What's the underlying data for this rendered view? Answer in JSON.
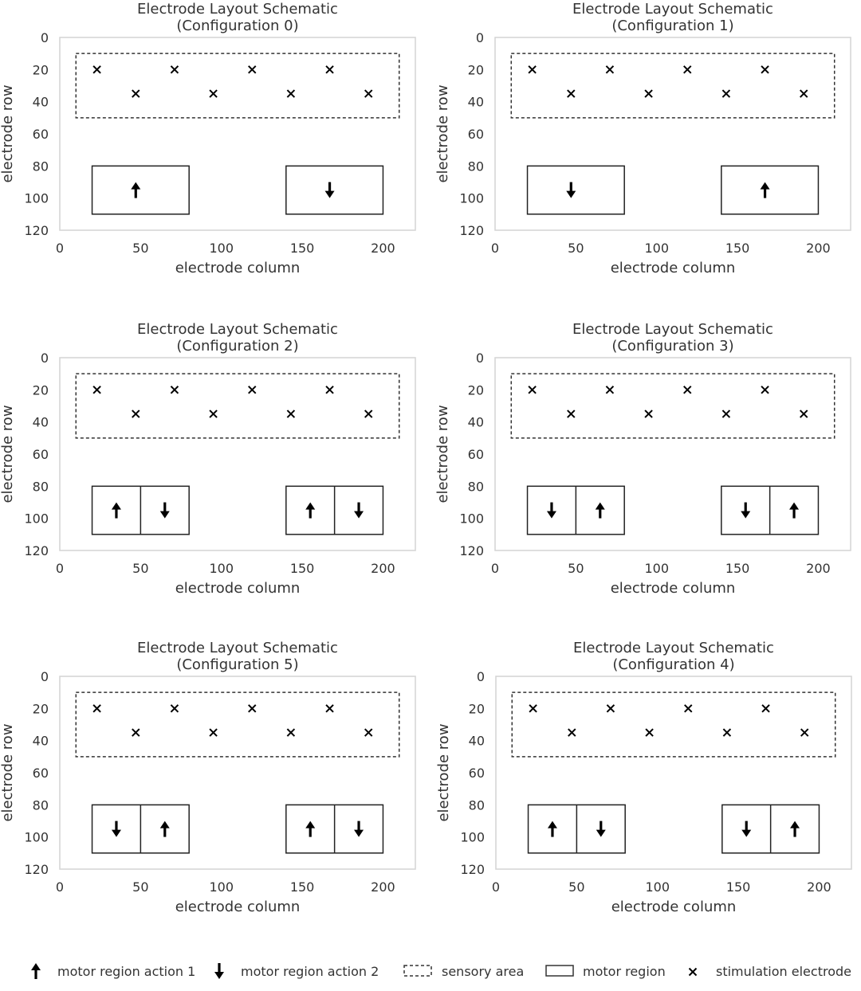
{
  "legend": {
    "action1_label": "motor region action 1",
    "action2_label": "motor region action 2",
    "sensory_label": "sensory area",
    "motor_label": "motor region",
    "electrode_label": "stimulation electrode"
  },
  "colors": {
    "frame": "#d4d4d4",
    "ink": "#000000",
    "text": "#333333"
  },
  "panels": [
    {
      "title1": "Electrode Layout Schematic",
      "title2": "(Configuration 0)",
      "xlabel": "electrode column",
      "ylabel": "electrode row",
      "x_ticks": [
        "0",
        "50",
        "100",
        "150",
        "200"
      ],
      "y_ticks": [
        "0",
        "20",
        "40",
        "60",
        "80",
        "100",
        "120"
      ],
      "xlim": [
        0,
        220
      ],
      "ylim": [
        0,
        120
      ],
      "sensory_area": {
        "x": [
          10,
          210
        ],
        "y": [
          10,
          50
        ]
      },
      "electrodes": [
        [
          23,
          20
        ],
        [
          71,
          20
        ],
        [
          119,
          20
        ],
        [
          167,
          20
        ],
        [
          47,
          35
        ],
        [
          95,
          35
        ],
        [
          143,
          35
        ],
        [
          191,
          35
        ]
      ],
      "motor_regions": [
        {
          "x": [
            20,
            80
          ],
          "y": [
            80,
            110
          ],
          "actions": [
            "up"
          ]
        },
        {
          "x": [
            140,
            200
          ],
          "y": [
            80,
            110
          ],
          "actions": [
            "down"
          ]
        }
      ]
    },
    {
      "title1": "Electrode Layout Schematic",
      "title2": "(Configuration 1)",
      "xlabel": "electrode column",
      "ylabel": "electrode row",
      "x_ticks": [
        "0",
        "50",
        "100",
        "150",
        "200"
      ],
      "y_ticks": [
        "0",
        "20",
        "40",
        "60",
        "80",
        "100",
        "120"
      ],
      "xlim": [
        0,
        220
      ],
      "ylim": [
        0,
        120
      ],
      "sensory_area": {
        "x": [
          10,
          210
        ],
        "y": [
          10,
          50
        ]
      },
      "electrodes": [
        [
          23,
          20
        ],
        [
          71,
          20
        ],
        [
          119,
          20
        ],
        [
          167,
          20
        ],
        [
          47,
          35
        ],
        [
          95,
          35
        ],
        [
          143,
          35
        ],
        [
          191,
          35
        ]
      ],
      "motor_regions": [
        {
          "x": [
            20,
            80
          ],
          "y": [
            80,
            110
          ],
          "actions": [
            "down"
          ]
        },
        {
          "x": [
            140,
            200
          ],
          "y": [
            80,
            110
          ],
          "actions": [
            "up"
          ]
        }
      ]
    },
    {
      "title1": "Electrode Layout Schematic",
      "title2": "(Configuration 2)",
      "xlabel": "electrode column",
      "ylabel": "electrode row",
      "x_ticks": [
        "0",
        "50",
        "100",
        "150",
        "200"
      ],
      "y_ticks": [
        "0",
        "20",
        "40",
        "60",
        "80",
        "100",
        "120"
      ],
      "xlim": [
        0,
        220
      ],
      "ylim": [
        0,
        120
      ],
      "sensory_area": {
        "x": [
          10,
          210
        ],
        "y": [
          10,
          50
        ]
      },
      "electrodes": [
        [
          23,
          20
        ],
        [
          71,
          20
        ],
        [
          119,
          20
        ],
        [
          167,
          20
        ],
        [
          47,
          35
        ],
        [
          95,
          35
        ],
        [
          143,
          35
        ],
        [
          191,
          35
        ]
      ],
      "motor_regions": [
        {
          "x": [
            20,
            80
          ],
          "y": [
            80,
            110
          ],
          "actions": [
            "up",
            "down"
          ]
        },
        {
          "x": [
            140,
            200
          ],
          "y": [
            80,
            110
          ],
          "actions": [
            "up",
            "down"
          ]
        }
      ]
    },
    {
      "title1": "Electrode Layout Schematic",
      "title2": "(Configuration 3)",
      "xlabel": "electrode column",
      "ylabel": "electrode row",
      "x_ticks": [
        "0",
        "50",
        "100",
        "150",
        "200"
      ],
      "y_ticks": [
        "0",
        "20",
        "40",
        "60",
        "80",
        "100",
        "120"
      ],
      "xlim": [
        0,
        220
      ],
      "ylim": [
        0,
        120
      ],
      "sensory_area": {
        "x": [
          10,
          210
        ],
        "y": [
          10,
          50
        ]
      },
      "electrodes": [
        [
          23,
          20
        ],
        [
          71,
          20
        ],
        [
          119,
          20
        ],
        [
          167,
          20
        ],
        [
          47,
          35
        ],
        [
          95,
          35
        ],
        [
          143,
          35
        ],
        [
          191,
          35
        ]
      ],
      "motor_regions": [
        {
          "x": [
            20,
            80
          ],
          "y": [
            80,
            110
          ],
          "actions": [
            "down",
            "up"
          ]
        },
        {
          "x": [
            140,
            200
          ],
          "y": [
            80,
            110
          ],
          "actions": [
            "down",
            "up"
          ]
        }
      ]
    },
    {
      "title1": "Electrode Layout Schematic",
      "title2": "(Configuration 5)",
      "xlabel": "electrode column",
      "ylabel": "electrode row",
      "x_ticks": [
        "0",
        "50",
        "100",
        "150",
        "200"
      ],
      "y_ticks": [
        "0",
        "20",
        "40",
        "60",
        "80",
        "100",
        "120"
      ],
      "xlim": [
        0,
        220
      ],
      "ylim": [
        0,
        120
      ],
      "sensory_area": {
        "x": [
          10,
          210
        ],
        "y": [
          10,
          50
        ]
      },
      "electrodes": [
        [
          23,
          20
        ],
        [
          71,
          20
        ],
        [
          119,
          20
        ],
        [
          167,
          20
        ],
        [
          47,
          35
        ],
        [
          95,
          35
        ],
        [
          143,
          35
        ],
        [
          191,
          35
        ]
      ],
      "motor_regions": [
        {
          "x": [
            20,
            80
          ],
          "y": [
            80,
            110
          ],
          "actions": [
            "down",
            "up"
          ]
        },
        {
          "x": [
            140,
            200
          ],
          "y": [
            80,
            110
          ],
          "actions": [
            "up",
            "down"
          ]
        }
      ]
    },
    {
      "title1": "Electrode Layout Schematic",
      "title2": "(Configuration 4)",
      "xlabel": "electrode column",
      "ylabel": "electrode row",
      "x_ticks": [
        "0",
        "50",
        "100",
        "150",
        "200"
      ],
      "y_ticks": [
        "0",
        "20",
        "40",
        "60",
        "80",
        "100",
        "120"
      ],
      "xlim": [
        0,
        220
      ],
      "ylim": [
        0,
        120
      ],
      "sensory_area": {
        "x": [
          10,
          210
        ],
        "y": [
          10,
          50
        ]
      },
      "electrodes": [
        [
          23,
          20
        ],
        [
          71,
          20
        ],
        [
          119,
          20
        ],
        [
          167,
          20
        ],
        [
          47,
          35
        ],
        [
          95,
          35
        ],
        [
          143,
          35
        ],
        [
          191,
          35
        ]
      ],
      "motor_regions": [
        {
          "x": [
            20,
            80
          ],
          "y": [
            80,
            110
          ],
          "actions": [
            "up",
            "down"
          ]
        },
        {
          "x": [
            140,
            200
          ],
          "y": [
            80,
            110
          ],
          "actions": [
            "down",
            "up"
          ]
        }
      ]
    }
  ]
}
